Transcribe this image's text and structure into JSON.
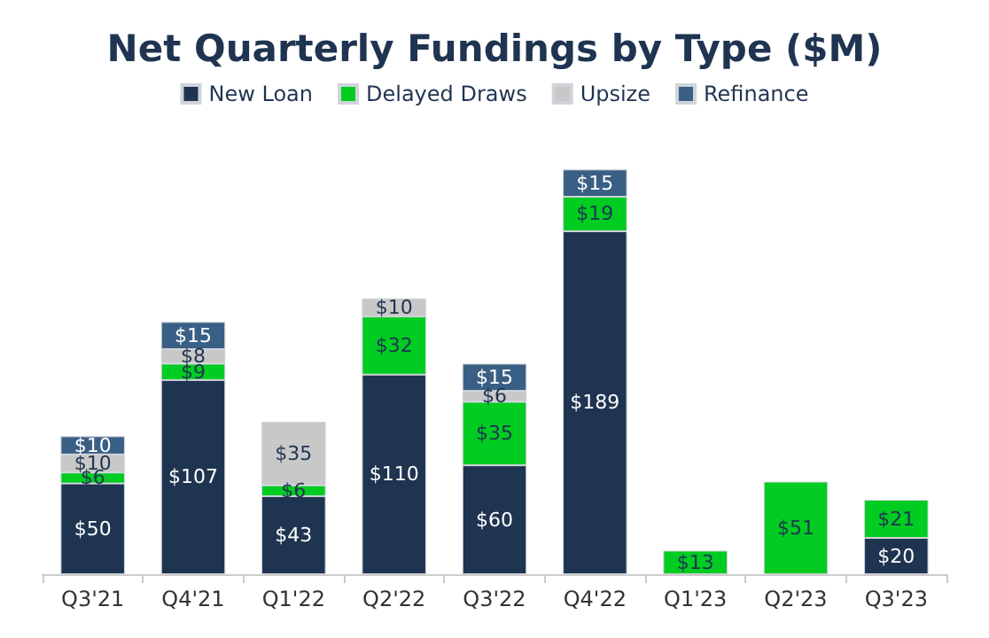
{
  "chart_data": {
    "type": "bar",
    "title": "Net Quarterly Fundings by Type ($M)",
    "stacked": true,
    "legend": "top",
    "tick_labels": "x",
    "categories": [
      "Q3'21",
      "Q4'21",
      "Q1'22",
      "Q2'22",
      "Q3'22",
      "Q4'22",
      "Q1'23",
      "Q2'23",
      "Q3'23"
    ],
    "series": [
      {
        "name": "New Loan",
        "color": "#1f3450",
        "values": [
          50,
          107,
          43,
          110,
          60,
          189,
          null,
          null,
          20
        ],
        "value_labels": [
          "$50",
          "$107",
          "$43",
          "$110",
          "$60",
          "$189",
          null,
          null,
          "$20"
        ]
      },
      {
        "name": "Delayed Draws",
        "color": "#00cc22",
        "values": [
          6,
          9,
          6,
          32,
          35,
          19,
          13,
          51,
          21
        ],
        "value_labels": [
          "$6",
          "$9",
          "$6",
          "$32",
          "$35",
          "$19",
          "$13",
          "$51",
          "$21"
        ]
      },
      {
        "name": "Upsize",
        "color": "#c8c8c8",
        "values": [
          10,
          8,
          35,
          10,
          6,
          null,
          null,
          null,
          null
        ],
        "value_labels": [
          "$10",
          "$8",
          "$35",
          "$10",
          "$6",
          null,
          null,
          null,
          null
        ]
      },
      {
        "name": "Refinance",
        "color": "#3a5f85",
        "values": [
          10,
          15,
          null,
          null,
          15,
          15,
          null,
          null,
          null
        ],
        "value_labels": [
          "$10",
          "$15",
          null,
          null,
          "$15",
          "$15",
          null,
          null,
          null
        ]
      }
    ]
  }
}
